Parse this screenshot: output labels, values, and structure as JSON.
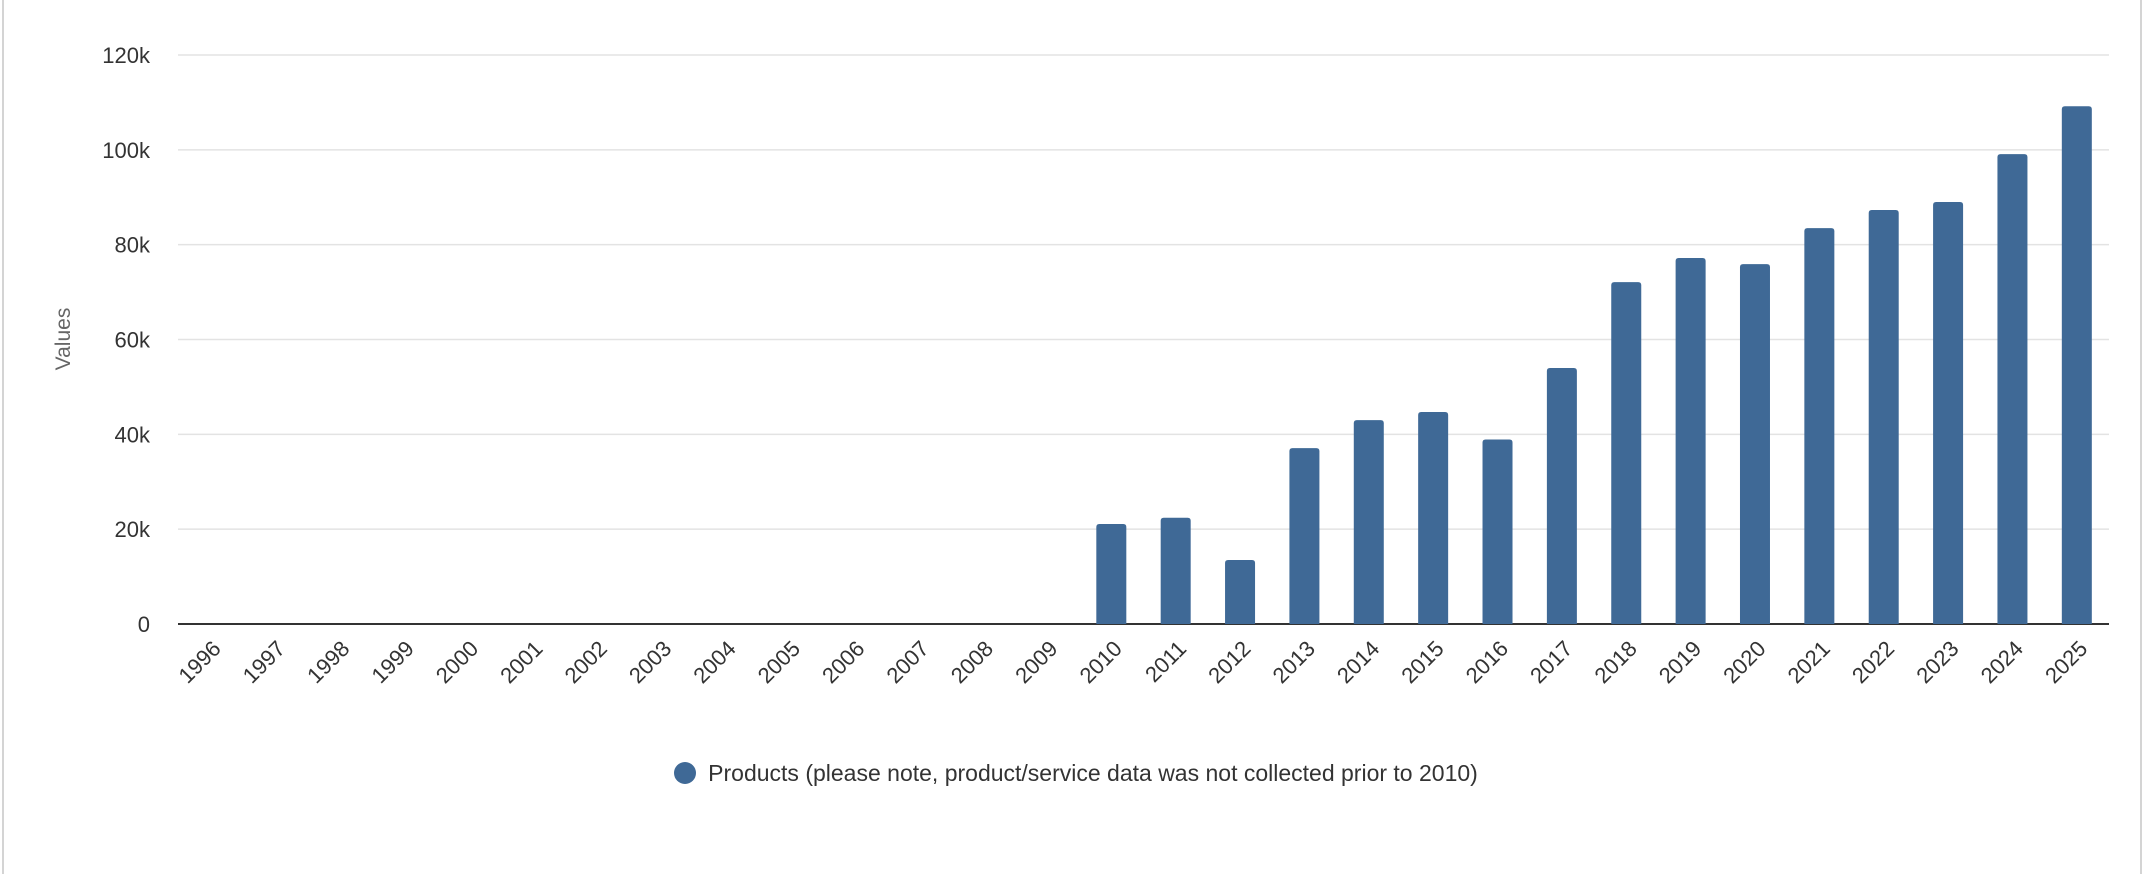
{
  "chart_data": {
    "type": "bar",
    "title": "",
    "xlabel": "",
    "ylabel": "Values",
    "ylim": [
      0,
      120000
    ],
    "yticks": [
      0,
      20000,
      40000,
      60000,
      80000,
      100000,
      120000
    ],
    "ytick_labels": [
      "0",
      "20k",
      "40k",
      "60k",
      "80k",
      "100k",
      "120k"
    ],
    "grid": true,
    "legend_position": "bottom-center",
    "categories": [
      "1996",
      "1997",
      "1998",
      "1999",
      "2000",
      "2001",
      "2002",
      "2003",
      "2004",
      "2005",
      "2006",
      "2007",
      "2008",
      "2009",
      "2010",
      "2011",
      "2012",
      "2013",
      "2014",
      "2015",
      "2016",
      "2017",
      "2018",
      "2019",
      "2020",
      "2021",
      "2022",
      "2023",
      "2024",
      "2025"
    ],
    "series": [
      {
        "name": "Products (please note, product/service data was not collected prior to 2010)",
        "color": "#3f6996",
        "values": [
          null,
          null,
          null,
          null,
          null,
          null,
          null,
          null,
          null,
          null,
          null,
          null,
          null,
          null,
          21100,
          22400,
          13500,
          37100,
          43000,
          44700,
          38900,
          54000,
          72100,
          77200,
          75900,
          83500,
          87300,
          89000,
          99100,
          109200
        ]
      }
    ]
  }
}
